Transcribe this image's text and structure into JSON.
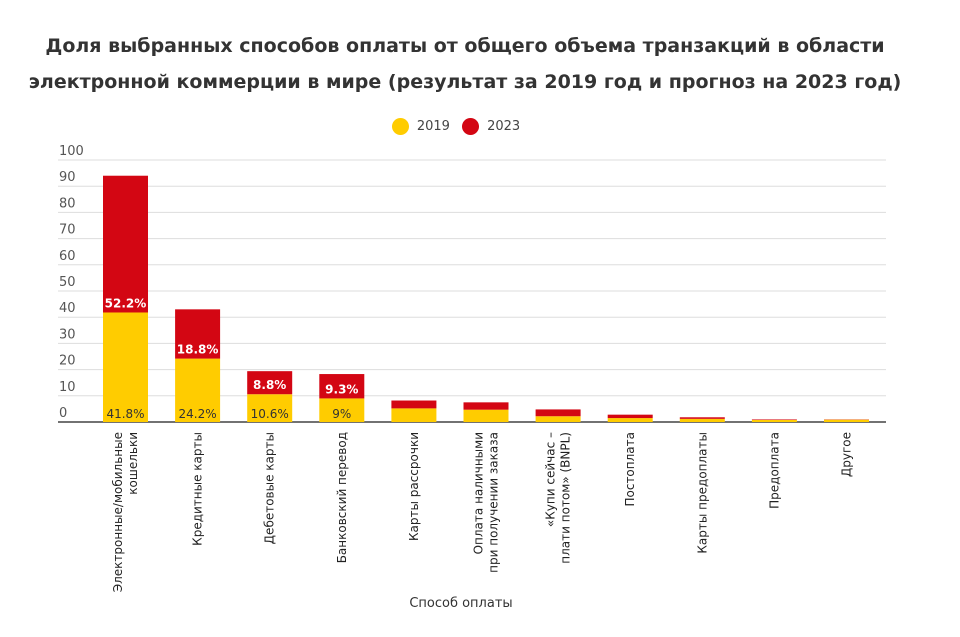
{
  "chart_data": {
    "type": "bar",
    "stacked": true,
    "title_lines": [
      "Доля выбранных способов оплаты от общего объема транзакций в области",
      "электронной коммерции в мире (результат за 2019 год и прогноз на 2023 год)"
    ],
    "xlabel": "Способ оплаты",
    "ylabel": "",
    "ylim": [
      0,
      100
    ],
    "yticks": [
      0,
      10,
      20,
      30,
      40,
      50,
      60,
      70,
      80,
      90,
      100
    ],
    "grid": true,
    "legend_position": "top-center",
    "categories": [
      [
        "Электронные/мобильные",
        "кошельки"
      ],
      [
        "Кредитные карты"
      ],
      [
        "Дебетовые карты"
      ],
      [
        "Банковский перевод"
      ],
      [
        "Карты рассрочки"
      ],
      [
        "Оплата наличными",
        "при получении заказа"
      ],
      [
        "«Купи сейчас –",
        "плати потом» (BNPL)"
      ],
      [
        "Постоплата"
      ],
      [
        "Карты предоплаты"
      ],
      [
        "Предоплата"
      ],
      [
        "Другое"
      ]
    ],
    "series": [
      {
        "name": "2019",
        "color": "#ffcc00",
        "values": [
          41.8,
          24.2,
          10.6,
          9,
          5.2,
          4.7,
          2.2,
          1.5,
          1.2,
          0.8,
          0.9
        ],
        "labels": [
          "41.8%",
          "24.2%",
          "10.6%",
          "9%",
          "",
          "",
          "",
          "",
          "",
          "",
          ""
        ]
      },
      {
        "name": "2023",
        "color": "#d30613",
        "values": [
          52.2,
          18.8,
          8.8,
          9.3,
          3.0,
          2.8,
          2.6,
          1.3,
          0.6,
          0.2,
          0.1
        ],
        "labels": [
          "52.2%",
          "18.8%",
          "8.8%",
          "9.3%",
          "",
          "",
          "",
          "",
          "",
          "",
          ""
        ]
      }
    ]
  }
}
